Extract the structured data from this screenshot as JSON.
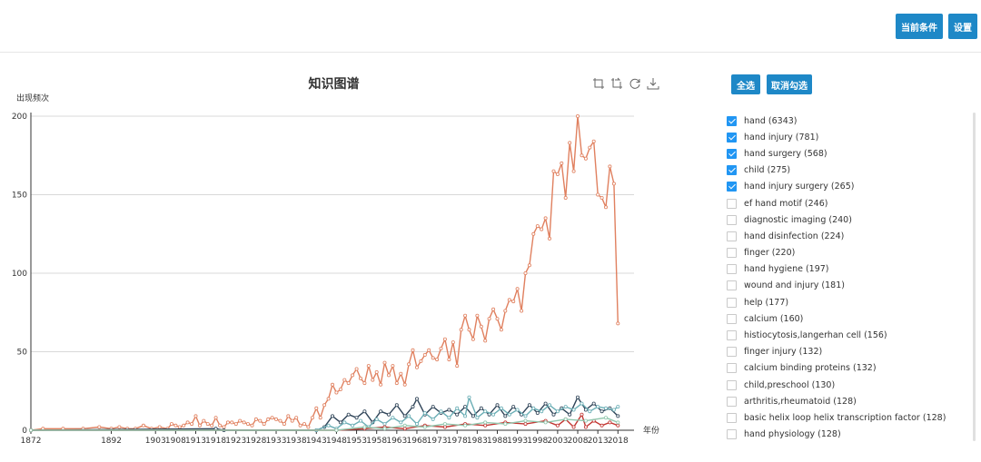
{
  "header": {
    "current_conditions_label": "当前条件",
    "settings_label": "设置"
  },
  "controls": {
    "select_all_label": "全选",
    "deselect_all_label": "取消勾选"
  },
  "toolbox": [
    "crop-icon",
    "crop-back-icon",
    "refresh-icon",
    "download-icon"
  ],
  "legend": [
    {
      "label": "hand (6343)",
      "checked": true
    },
    {
      "label": "hand injury (781)",
      "checked": true
    },
    {
      "label": "hand surgery (568)",
      "checked": true
    },
    {
      "label": "child (275)",
      "checked": true
    },
    {
      "label": "hand injury surgery (265)",
      "checked": true
    },
    {
      "label": "ef hand motif (246)",
      "checked": false
    },
    {
      "label": "diagnostic imaging (240)",
      "checked": false
    },
    {
      "label": "hand disinfection (224)",
      "checked": false
    },
    {
      "label": "finger (220)",
      "checked": false
    },
    {
      "label": "hand hygiene (197)",
      "checked": false
    },
    {
      "label": "wound and injury (181)",
      "checked": false
    },
    {
      "label": "help (177)",
      "checked": false
    },
    {
      "label": "calcium (160)",
      "checked": false
    },
    {
      "label": "histiocytosis,langerhan cell (156)",
      "checked": false
    },
    {
      "label": "finger injury (132)",
      "checked": false
    },
    {
      "label": "calcium binding proteins (132)",
      "checked": false
    },
    {
      "label": "child,preschool (130)",
      "checked": false
    },
    {
      "label": "arthritis,rheumatoid (128)",
      "checked": false
    },
    {
      "label": "basic helix loop helix transcription factor (128)",
      "checked": false
    },
    {
      "label": "hand physiology (128)",
      "checked": false
    }
  ],
  "chart_data": {
    "type": "line",
    "title": "知识图谱",
    "xlabel": "年份",
    "ylabel": "出现频次",
    "ylim": [
      0,
      200
    ],
    "yticks": [
      0,
      50,
      100,
      150,
      200
    ],
    "xticks": [
      1872,
      1892,
      1903,
      1908,
      1913,
      1918,
      1923,
      1928,
      1933,
      1938,
      1943,
      1948,
      1953,
      1958,
      1963,
      1968,
      1973,
      1978,
      1983,
      1988,
      1993,
      1998,
      2003,
      2008,
      2013,
      2018
    ],
    "x_end": 2022,
    "grid": true,
    "series": [
      {
        "name": "hand (6343)",
        "color": "#e0805f",
        "points": [
          [
            1872,
            0
          ],
          [
            1875,
            1
          ],
          [
            1880,
            1
          ],
          [
            1885,
            1
          ],
          [
            1889,
            2
          ],
          [
            1892,
            1
          ],
          [
            1894,
            2
          ],
          [
            1896,
            1
          ],
          [
            1898,
            1
          ],
          [
            1900,
            3
          ],
          [
            1902,
            1
          ],
          [
            1904,
            2
          ],
          [
            1906,
            1
          ],
          [
            1907,
            4
          ],
          [
            1908,
            3
          ],
          [
            1909,
            2
          ],
          [
            1910,
            3
          ],
          [
            1911,
            5
          ],
          [
            1912,
            4
          ],
          [
            1913,
            9
          ],
          [
            1914,
            3
          ],
          [
            1915,
            6
          ],
          [
            1916,
            4
          ],
          [
            1917,
            3
          ],
          [
            1918,
            8
          ],
          [
            1919,
            3
          ],
          [
            1920,
            2
          ],
          [
            1921,
            5
          ],
          [
            1922,
            5
          ],
          [
            1923,
            4
          ],
          [
            1924,
            6
          ],
          [
            1925,
            5
          ],
          [
            1926,
            4
          ],
          [
            1927,
            3
          ],
          [
            1928,
            7
          ],
          [
            1929,
            6
          ],
          [
            1930,
            4
          ],
          [
            1931,
            7
          ],
          [
            1932,
            8
          ],
          [
            1933,
            7
          ],
          [
            1934,
            6
          ],
          [
            1935,
            4
          ],
          [
            1936,
            9
          ],
          [
            1937,
            6
          ],
          [
            1938,
            8
          ],
          [
            1939,
            3
          ],
          [
            1940,
            4
          ],
          [
            1941,
            2
          ],
          [
            1942,
            8
          ],
          [
            1943,
            14
          ],
          [
            1944,
            8
          ],
          [
            1945,
            16
          ],
          [
            1946,
            20
          ],
          [
            1947,
            29
          ],
          [
            1948,
            24
          ],
          [
            1949,
            26
          ],
          [
            1950,
            32
          ],
          [
            1951,
            30
          ],
          [
            1952,
            35
          ],
          [
            1953,
            39
          ],
          [
            1954,
            33
          ],
          [
            1955,
            30
          ],
          [
            1956,
            41
          ],
          [
            1957,
            32
          ],
          [
            1958,
            37
          ],
          [
            1959,
            29
          ],
          [
            1960,
            43
          ],
          [
            1961,
            35
          ],
          [
            1962,
            41
          ],
          [
            1963,
            30
          ],
          [
            1964,
            36
          ],
          [
            1965,
            29
          ],
          [
            1966,
            42
          ],
          [
            1967,
            51
          ],
          [
            1968,
            40
          ],
          [
            1969,
            44
          ],
          [
            1970,
            48
          ],
          [
            1971,
            51
          ],
          [
            1972,
            46
          ],
          [
            1973,
            45
          ],
          [
            1974,
            52
          ],
          [
            1975,
            58
          ],
          [
            1976,
            45
          ],
          [
            1977,
            56
          ],
          [
            1978,
            41
          ],
          [
            1979,
            64
          ],
          [
            1980,
            73
          ],
          [
            1981,
            64
          ],
          [
            1982,
            58
          ],
          [
            1983,
            73
          ],
          [
            1984,
            66
          ],
          [
            1985,
            57
          ],
          [
            1986,
            71
          ],
          [
            1987,
            77
          ],
          [
            1988,
            71
          ],
          [
            1989,
            64
          ],
          [
            1990,
            76
          ],
          [
            1991,
            83
          ],
          [
            1992,
            82
          ],
          [
            1993,
            90
          ],
          [
            1994,
            76
          ],
          [
            1995,
            100
          ],
          [
            1996,
            105
          ],
          [
            1997,
            125
          ],
          [
            1998,
            130
          ],
          [
            1999,
            128
          ],
          [
            2000,
            135
          ],
          [
            2001,
            122
          ],
          [
            2002,
            165
          ],
          [
            2003,
            163
          ],
          [
            2004,
            170
          ],
          [
            2005,
            148
          ],
          [
            2006,
            183
          ],
          [
            2007,
            165
          ],
          [
            2008,
            200
          ],
          [
            2009,
            175
          ],
          [
            2010,
            173
          ],
          [
            2011,
            180
          ],
          [
            2012,
            184
          ],
          [
            2013,
            150
          ],
          [
            2014,
            148
          ],
          [
            2015,
            142
          ],
          [
            2016,
            168
          ],
          [
            2017,
            157
          ],
          [
            2018,
            68
          ]
        ]
      },
      {
        "name": "hand injury (781)",
        "color": "#2f4458",
        "points": [
          [
            1872,
            0
          ],
          [
            1918,
            1
          ],
          [
            1920,
            0
          ],
          [
            1943,
            0
          ],
          [
            1945,
            2
          ],
          [
            1947,
            9
          ],
          [
            1949,
            5
          ],
          [
            1951,
            10
          ],
          [
            1953,
            8
          ],
          [
            1955,
            12
          ],
          [
            1957,
            5
          ],
          [
            1959,
            12
          ],
          [
            1961,
            10
          ],
          [
            1963,
            16
          ],
          [
            1965,
            9
          ],
          [
            1967,
            15
          ],
          [
            1968,
            20
          ],
          [
            1970,
            10
          ],
          [
            1972,
            15
          ],
          [
            1974,
            11
          ],
          [
            1976,
            13
          ],
          [
            1978,
            10
          ],
          [
            1980,
            15
          ],
          [
            1982,
            9
          ],
          [
            1984,
            14
          ],
          [
            1986,
            10
          ],
          [
            1988,
            16
          ],
          [
            1990,
            9
          ],
          [
            1992,
            15
          ],
          [
            1994,
            10
          ],
          [
            1996,
            16
          ],
          [
            1998,
            11
          ],
          [
            2000,
            17
          ],
          [
            2002,
            10
          ],
          [
            2004,
            14
          ],
          [
            2006,
            10
          ],
          [
            2008,
            21
          ],
          [
            2010,
            13
          ],
          [
            2012,
            17
          ],
          [
            2014,
            12
          ],
          [
            2016,
            14
          ],
          [
            2018,
            9
          ]
        ]
      },
      {
        "name": "hand surgery (568)",
        "color": "#6aaeb5",
        "points": [
          [
            1872,
            0
          ],
          [
            1943,
            0
          ],
          [
            1946,
            3
          ],
          [
            1948,
            1
          ],
          [
            1950,
            5
          ],
          [
            1952,
            3
          ],
          [
            1954,
            6
          ],
          [
            1956,
            2
          ],
          [
            1958,
            7
          ],
          [
            1960,
            4
          ],
          [
            1962,
            8
          ],
          [
            1964,
            5
          ],
          [
            1966,
            9
          ],
          [
            1968,
            4
          ],
          [
            1970,
            11
          ],
          [
            1972,
            7
          ],
          [
            1974,
            12
          ],
          [
            1976,
            8
          ],
          [
            1978,
            14
          ],
          [
            1980,
            9
          ],
          [
            1981,
            21
          ],
          [
            1983,
            8
          ],
          [
            1985,
            12
          ],
          [
            1987,
            10
          ],
          [
            1989,
            14
          ],
          [
            1991,
            10
          ],
          [
            1993,
            13
          ],
          [
            1995,
            9
          ],
          [
            1997,
            14
          ],
          [
            1999,
            12
          ],
          [
            2001,
            16
          ],
          [
            2003,
            12
          ],
          [
            2005,
            15
          ],
          [
            2007,
            13
          ],
          [
            2009,
            17
          ],
          [
            2011,
            12
          ],
          [
            2013,
            15
          ],
          [
            2015,
            14
          ],
          [
            2017,
            13
          ],
          [
            2018,
            15
          ]
        ]
      },
      {
        "name": "child (275)",
        "color": "#c23531",
        "points": [
          [
            1872,
            0
          ],
          [
            1948,
            0
          ],
          [
            1955,
            1
          ],
          [
            1960,
            2
          ],
          [
            1965,
            1
          ],
          [
            1970,
            3
          ],
          [
            1975,
            2
          ],
          [
            1980,
            4
          ],
          [
            1985,
            3
          ],
          [
            1990,
            5
          ],
          [
            1995,
            4
          ],
          [
            2000,
            6
          ],
          [
            2003,
            3
          ],
          [
            2005,
            7
          ],
          [
            2007,
            2
          ],
          [
            2009,
            10
          ],
          [
            2010,
            2
          ],
          [
            2012,
            6
          ],
          [
            2014,
            3
          ],
          [
            2016,
            5
          ],
          [
            2018,
            3
          ]
        ]
      },
      {
        "name": "hand injury surgery (265)",
        "color": "#91c7ae",
        "points": [
          [
            1872,
            0
          ],
          [
            1948,
            0
          ],
          [
            1955,
            2
          ],
          [
            1960,
            1
          ],
          [
            1965,
            3
          ],
          [
            1970,
            2
          ],
          [
            1975,
            4
          ],
          [
            1980,
            3
          ],
          [
            1985,
            5
          ],
          [
            1990,
            4
          ],
          [
            1995,
            6
          ],
          [
            2000,
            5
          ],
          [
            2005,
            7
          ],
          [
            2010,
            6
          ],
          [
            2015,
            8
          ],
          [
            2018,
            5
          ]
        ]
      }
    ]
  }
}
